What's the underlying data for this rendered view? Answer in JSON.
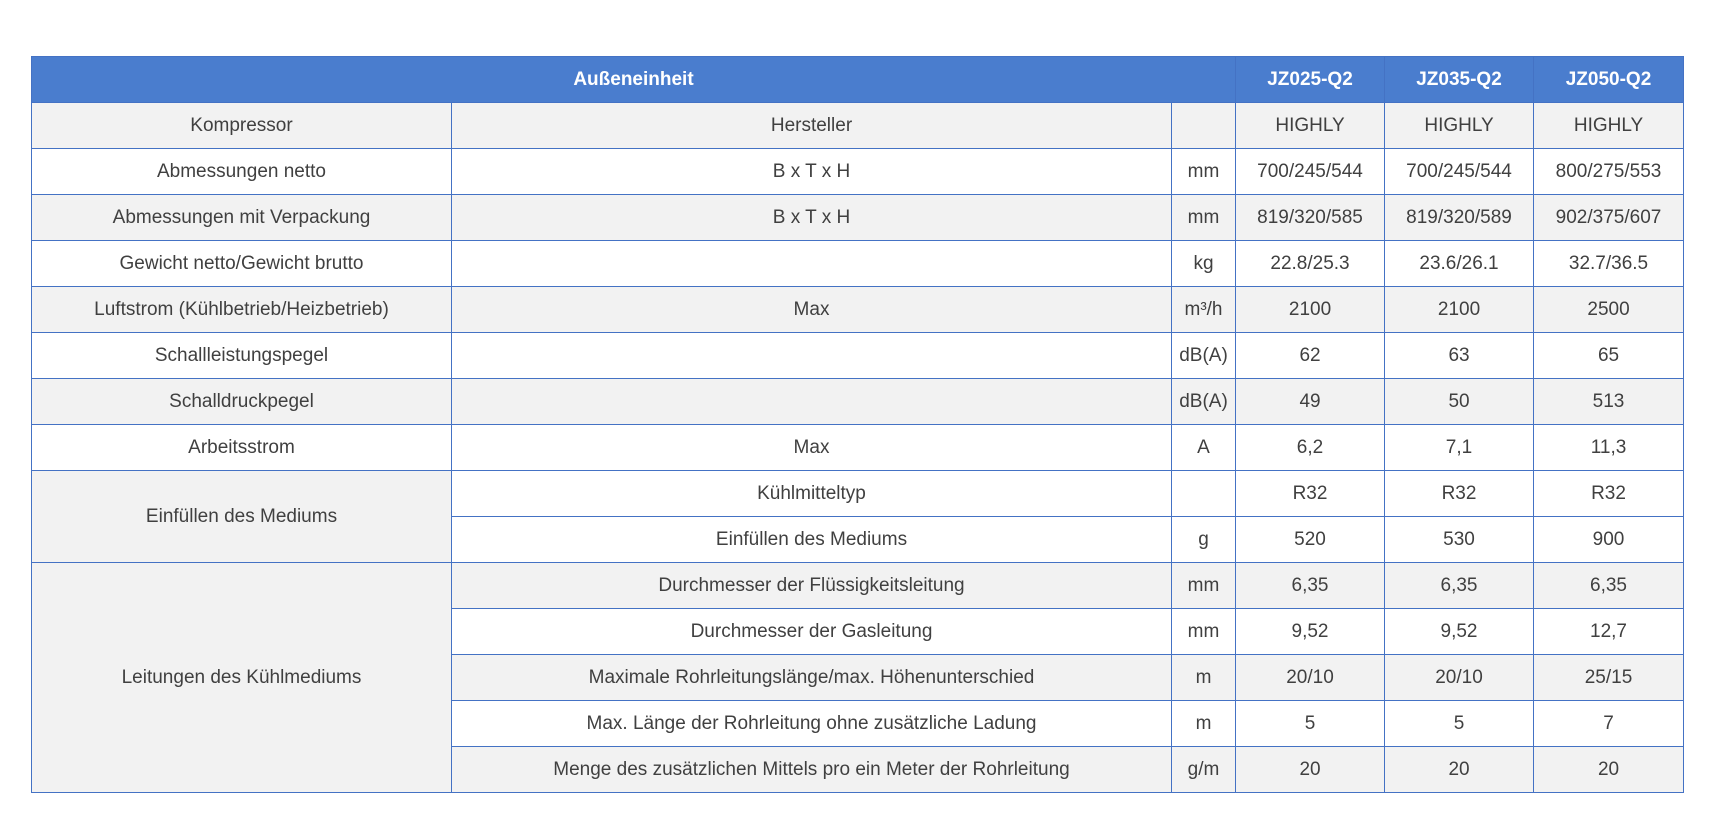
{
  "table": {
    "header": {
      "title": "Außeneinheit",
      "models": [
        "JZ025-Q2",
        "JZ035-Q2",
        "JZ050-Q2"
      ]
    },
    "rows": [
      {
        "cat": "Kompressor",
        "param": "Hersteller",
        "unit": "",
        "v1": "HIGHLY",
        "v2": "HIGHLY",
        "v3": "HIGHLY"
      },
      {
        "cat": "Abmessungen netto",
        "param": "B x T x H",
        "unit": "mm",
        "v1": "700/245/544",
        "v2": "700/245/544",
        "v3": "800/275/553"
      },
      {
        "cat": "Abmessungen mit Verpackung",
        "param": "B x T x H",
        "unit": "mm",
        "v1": "819/320/585",
        "v2": "819/320/589",
        "v3": "902/375/607"
      },
      {
        "cat": "Gewicht netto/Gewicht brutto",
        "param": "",
        "unit": "kg",
        "v1": "22.8/25.3",
        "v2": "23.6/26.1",
        "v3": "32.7/36.5"
      },
      {
        "cat": "Luftstrom (Kühlbetrieb/Heizbetrieb)",
        "param": "Max",
        "unit": "m³/h",
        "v1": "2100",
        "v2": "2100",
        "v3": "2500"
      },
      {
        "cat": "Schallleistungspegel",
        "param": "",
        "unit": "dB(A)",
        "v1": "62",
        "v2": "63",
        "v3": "65"
      },
      {
        "cat": "Schalldruckpegel",
        "param": "",
        "unit": "dB(A)",
        "v1": "49",
        "v2": "50",
        "v3": "513"
      },
      {
        "cat": "Arbeitsstrom",
        "param": "Max",
        "unit": "A",
        "v1": "6,2",
        "v2": "7,1",
        "v3": "11,3"
      }
    ],
    "medium": {
      "cat": "Einfüllen des Mediums",
      "rows": [
        {
          "param": "Kühlmitteltyp",
          "unit": "",
          "v1": "R32",
          "v2": "R32",
          "v3": "R32"
        },
        {
          "param": "Einfüllen des Mediums",
          "unit": "g",
          "v1": "520",
          "v2": "530",
          "v3": "900"
        }
      ]
    },
    "pipes": {
      "cat": "Leitungen des Kühlmediums",
      "rows": [
        {
          "param": "Durchmesser der Flüssigkeitsleitung",
          "unit": "mm",
          "v1": "6,35",
          "v2": "6,35",
          "v3": "6,35"
        },
        {
          "param": "Durchmesser der Gasleitung",
          "unit": "mm",
          "v1": "9,52",
          "v2": "9,52",
          "v3": "12,7"
        },
        {
          "param": "Maximale Rohrleitungslänge/max. Höhenunterschied",
          "unit": "m",
          "v1": "20/10",
          "v2": "20/10",
          "v3": "25/15"
        },
        {
          "param": "Max. Länge der Rohrleitung ohne zusätzliche Ladung",
          "unit": "m",
          "v1": "5",
          "v2": "5",
          "v3": "7"
        },
        {
          "param": "Menge des zusätzlichen Mittels pro ein Meter der Rohrleitung",
          "unit": "g/m",
          "v1": "20",
          "v2": "20",
          "v3": "20"
        }
      ]
    }
  }
}
